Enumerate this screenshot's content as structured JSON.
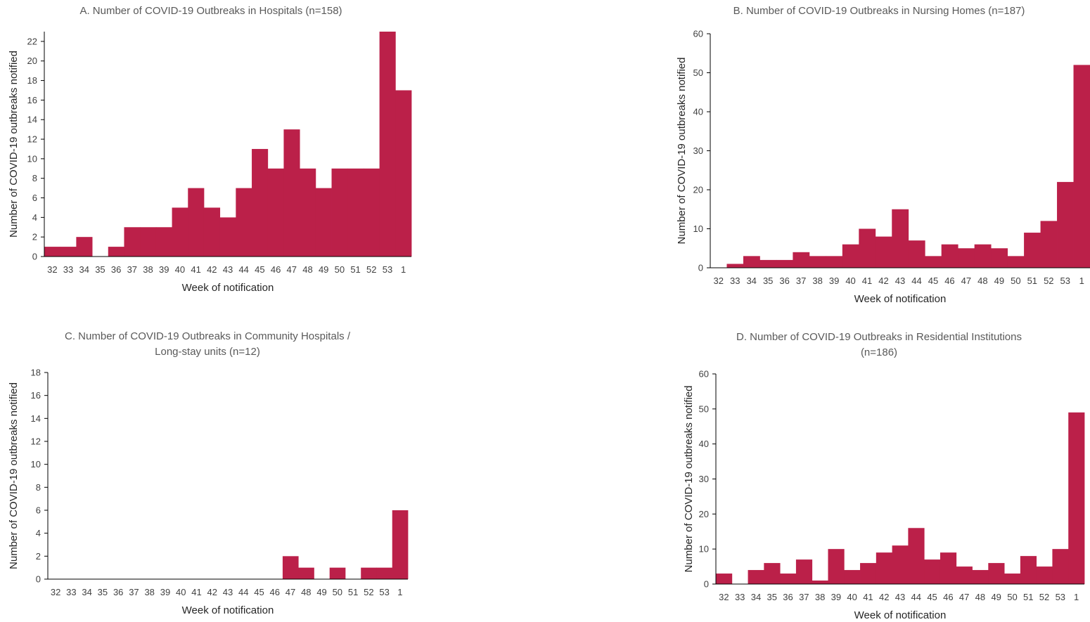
{
  "colors": {
    "bar": "#bb2049",
    "axis": "#000000",
    "text": "#404040",
    "title": "#595959"
  },
  "chart_data": [
    {
      "id": "A",
      "type": "bar",
      "title": "A. Number of COVID-19 Outbreaks in Hospitals (n=158)",
      "xlabel": "Week of notification",
      "ylabel": "Number of COVID-19 outbreaks notified",
      "ylim": [
        0,
        23
      ],
      "yticks": [
        0,
        2,
        4,
        6,
        8,
        10,
        12,
        14,
        16,
        18,
        20,
        22
      ],
      "grid": false,
      "categories": [
        "32",
        "33",
        "34",
        "35",
        "36",
        "37",
        "38",
        "39",
        "40",
        "41",
        "42",
        "43",
        "44",
        "45",
        "46",
        "47",
        "48",
        "49",
        "50",
        "51",
        "52",
        "53",
        "1"
      ],
      "values": [
        1,
        1,
        2,
        0,
        1,
        3,
        3,
        3,
        5,
        7,
        5,
        4,
        7,
        11,
        9,
        13,
        9,
        7,
        9,
        9,
        9,
        23,
        17
      ]
    },
    {
      "id": "B",
      "type": "bar",
      "title": "B. Number of COVID-19 Outbreaks in Nursing Homes (n=187)",
      "xlabel": "Week of notification",
      "ylabel": "Number of COVID-19 outbreaks notified",
      "ylim": [
        0,
        60
      ],
      "yticks": [
        0,
        10,
        20,
        30,
        40,
        50,
        60
      ],
      "grid": false,
      "categories": [
        "32",
        "33",
        "34",
        "35",
        "36",
        "37",
        "38",
        "39",
        "40",
        "41",
        "42",
        "43",
        "44",
        "45",
        "46",
        "47",
        "48",
        "49",
        "50",
        "51",
        "52",
        "53",
        "1"
      ],
      "values": [
        0,
        1,
        3,
        2,
        2,
        4,
        3,
        3,
        6,
        10,
        8,
        15,
        7,
        3,
        6,
        5,
        6,
        5,
        3,
        9,
        12,
        22,
        52
      ]
    },
    {
      "id": "C",
      "type": "bar",
      "title": "C. Number of COVID-19 Outbreaks in Community Hospitals /\nLong-stay units (n=12)",
      "xlabel": "Week of notification",
      "ylabel": "Number of COVID-19 outbreaks notified",
      "ylim": [
        0,
        18
      ],
      "yticks": [
        0,
        2,
        4,
        6,
        8,
        10,
        12,
        14,
        16,
        18
      ],
      "grid": false,
      "categories": [
        "32",
        "33",
        "34",
        "35",
        "36",
        "37",
        "38",
        "39",
        "40",
        "41",
        "42",
        "43",
        "44",
        "45",
        "46",
        "47",
        "48",
        "49",
        "50",
        "51",
        "52",
        "53",
        "1"
      ],
      "values": [
        0,
        0,
        0,
        0,
        0,
        0,
        0,
        0,
        0,
        0,
        0,
        0,
        0,
        0,
        0,
        2,
        1,
        0,
        1,
        0,
        1,
        1,
        6
      ]
    },
    {
      "id": "D",
      "type": "bar",
      "title": "D. Number of COVID-19 Outbreaks in Residential Institutions\n(n=186)",
      "xlabel": "Week of notification",
      "ylabel": "Number of COVID-19 outbreaks notified",
      "ylim": [
        0,
        60
      ],
      "yticks": [
        0,
        10,
        20,
        30,
        40,
        50,
        60
      ],
      "grid": false,
      "categories": [
        "32",
        "33",
        "34",
        "35",
        "36",
        "37",
        "38",
        "39",
        "40",
        "41",
        "42",
        "43",
        "44",
        "45",
        "46",
        "47",
        "48",
        "49",
        "50",
        "51",
        "52",
        "53",
        "1"
      ],
      "values": [
        3,
        0,
        4,
        6,
        3,
        7,
        1,
        10,
        4,
        6,
        9,
        11,
        16,
        7,
        9,
        5,
        4,
        6,
        3,
        8,
        5,
        10,
        49
      ]
    }
  ]
}
